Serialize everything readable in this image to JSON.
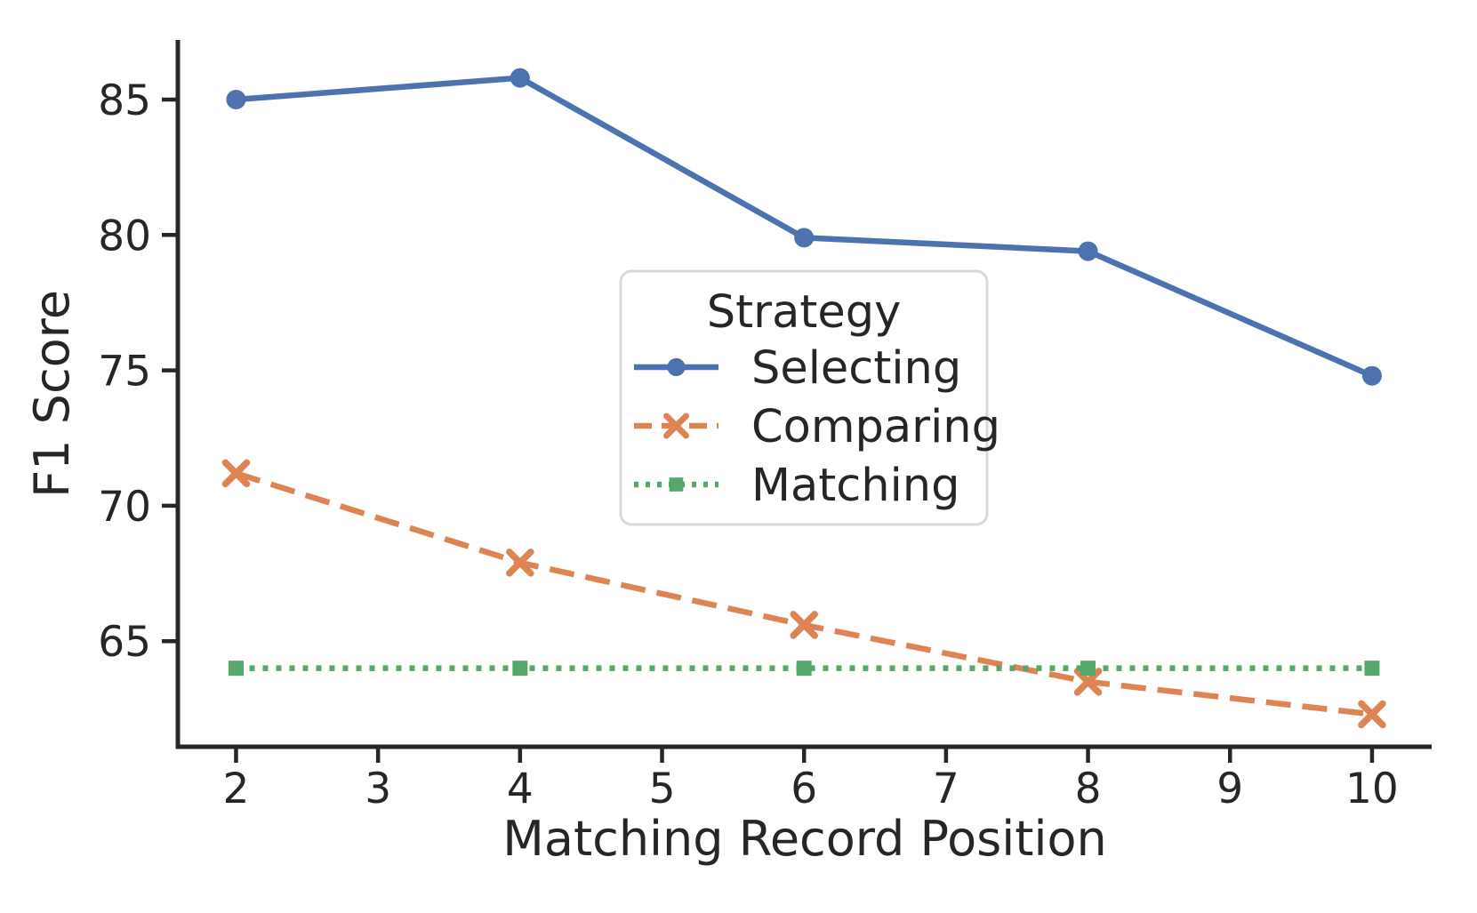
{
  "figure": {
    "background": "#ffffff",
    "text_color": "#262626",
    "spine_color": "#262626",
    "legend_border_color": "#d8d8d8",
    "legend_fill": "#ffffff"
  },
  "chart_data": {
    "type": "line",
    "title": "",
    "xlabel": "Matching Record Position",
    "ylabel": "F1 Score",
    "x": [
      2,
      4,
      6,
      8,
      10
    ],
    "xticks": [
      2,
      3,
      4,
      5,
      6,
      7,
      8,
      9,
      10
    ],
    "yticks": [
      65,
      70,
      75,
      80,
      85
    ],
    "xlim": [
      1.59,
      10.42
    ],
    "ylim": [
      61.1,
      87.2
    ],
    "grid": false,
    "legend": {
      "title": "Strategy",
      "position": "center"
    },
    "series": [
      {
        "name": "Selecting",
        "color": "#4C72B0",
        "linestyle": "solid",
        "marker": "circle",
        "values": [
          85.0,
          85.8,
          79.9,
          79.4,
          74.8
        ]
      },
      {
        "name": "Comparing",
        "color": "#DD8452",
        "linestyle": "dashed",
        "marker": "x",
        "values": [
          71.2,
          67.9,
          65.6,
          63.5,
          62.3
        ]
      },
      {
        "name": "Matching",
        "color": "#55A868",
        "linestyle": "dotted",
        "marker": "square",
        "values": [
          64.0,
          64.0,
          64.0,
          64.0,
          64.0
        ]
      }
    ]
  }
}
